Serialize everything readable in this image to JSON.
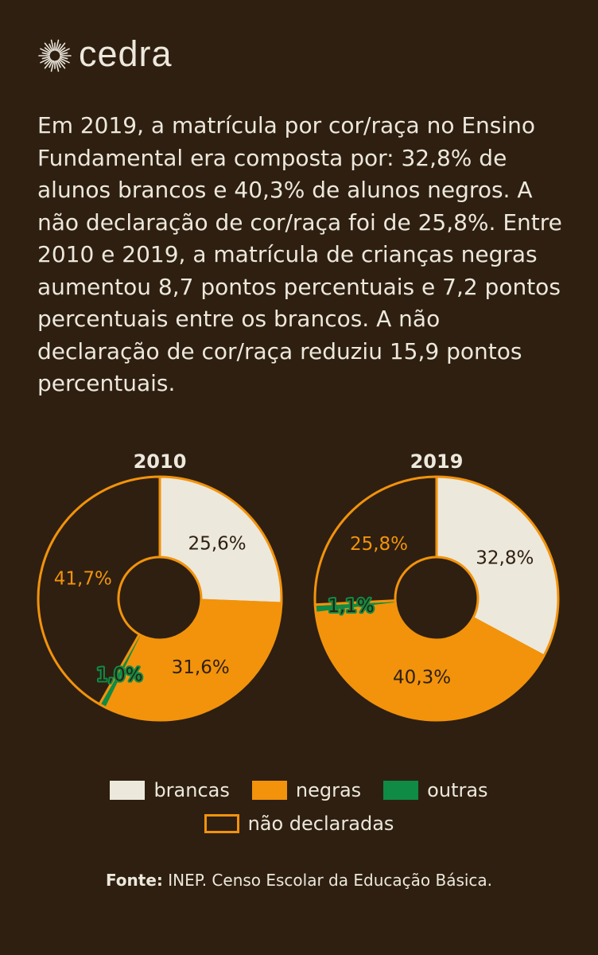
{
  "brand": {
    "name": "cedra",
    "icon": "sunburst-icon"
  },
  "intro_text": "Em 2019, a matrícula por cor/raça no Ensino Fundamental era composta por: 32,8% de alunos brancos e 40,3% de alunos negros. A não declaração de cor/raça foi de 25,8%. Entre 2010 e 2019, a matrícula de crianças negras aumentou 8,7 pontos percentuais e 7,2 pontos percentuais entre os brancos.  A não declaração de cor/raça reduziu 15,9 pontos percentuais.",
  "colors": {
    "background": "#2e1f11",
    "brancas": "#ece8dc",
    "negras": "#f2930b",
    "outras": "#0f8b45",
    "nao_declaradas": "#2e1f11",
    "outline": "#f2930b",
    "text_dark": "#2e1f11"
  },
  "chart_data": [
    {
      "type": "pie",
      "title": "2010",
      "donut": true,
      "categories": [
        "brancas",
        "negras",
        "outras",
        "não declaradas"
      ],
      "values": [
        25.6,
        31.6,
        1.0,
        41.7
      ],
      "labels": [
        "25,6%",
        "31,6%",
        "1,0%",
        "41,7%"
      ]
    },
    {
      "type": "pie",
      "title": "2019",
      "donut": true,
      "categories": [
        "brancas",
        "negras",
        "outras",
        "não declaradas"
      ],
      "values": [
        32.8,
        40.3,
        1.1,
        25.8
      ],
      "labels": [
        "32,8%",
        "40,3%",
        "1,1%",
        "25,8%"
      ]
    }
  ],
  "legend": {
    "items": [
      {
        "key": "brancas",
        "label": "brancas"
      },
      {
        "key": "negras",
        "label": "negras"
      },
      {
        "key": "outras",
        "label": "outras"
      },
      {
        "key": "nao_declaradas",
        "label": "não declaradas"
      }
    ]
  },
  "source": {
    "prefix": "Fonte:",
    "text": " INEP. Censo Escolar da Educação Básica."
  }
}
